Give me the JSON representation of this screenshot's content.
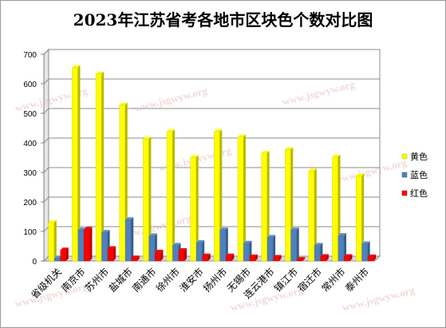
{
  "chart_data": {
    "type": "bar",
    "title": "2023年江苏省考各地市区块色个数对比图",
    "xlabel": "",
    "ylabel": "",
    "ylim": [
      0,
      700
    ],
    "yticks": [
      0,
      100,
      200,
      300,
      400,
      500,
      600,
      700
    ],
    "grid": true,
    "legend_position": "right",
    "categories": [
      "省级机关",
      "南京市",
      "苏州市",
      "盐城市",
      "南通市",
      "徐州市",
      "淮安市",
      "扬州市",
      "无锡市",
      "连云港市",
      "镇江市",
      "宿迁市",
      "常州市",
      "泰州市"
    ],
    "series": [
      {
        "name": "黄色",
        "color": "#ffff00",
        "values": [
          130,
          655,
          633,
          528,
          413,
          438,
          350,
          438,
          420,
          365,
          377,
          305,
          352,
          288
        ]
      },
      {
        "name": "蓝色",
        "color": "#4f81bd",
        "values": [
          10,
          105,
          97,
          140,
          85,
          53,
          62,
          105,
          60,
          80,
          105,
          53,
          86,
          58
        ]
      },
      {
        "name": "红色",
        "color": "#ff0000",
        "values": [
          37,
          107,
          42,
          10,
          30,
          35,
          17,
          17,
          14,
          12,
          5,
          15,
          15,
          14
        ]
      }
    ]
  },
  "watermark": "www.jsgwyw.org"
}
